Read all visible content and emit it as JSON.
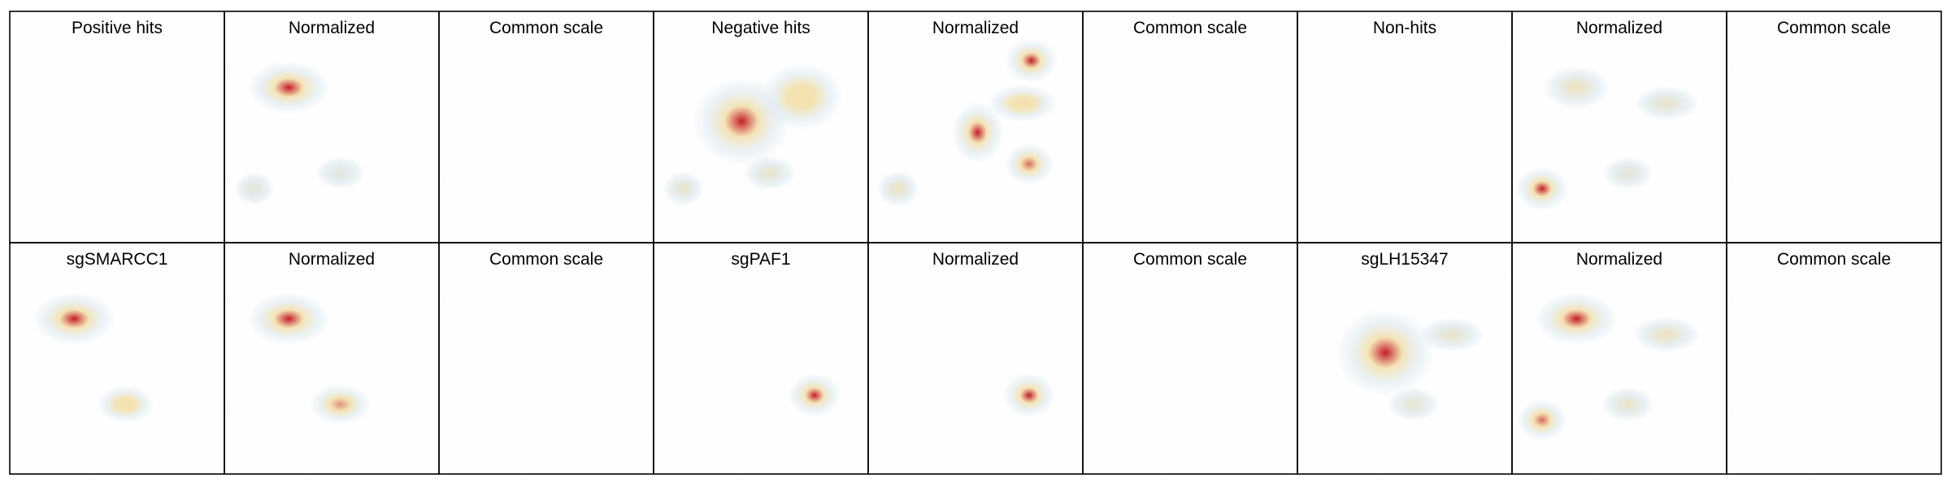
{
  "colors": {
    "background": "#ffffff",
    "embedding": "#dedede",
    "frame": "#000000",
    "density_low": "#dbe8ef",
    "density_mid": "#f3dfa8",
    "density_high": "#c00f1b"
  },
  "panels": [
    [
      {
        "title": "Positive hits",
        "hotspots": []
      },
      {
        "title": "Normalized",
        "hotspots": [
          {
            "region": "upper-left",
            "level": 1.0
          },
          {
            "region": "lower-left",
            "level": 0.2
          },
          {
            "region": "lower-middle",
            "level": 0.15
          }
        ]
      },
      {
        "title": "Common scale",
        "hotspots": []
      },
      {
        "title": "Negative hits",
        "hotspots": [
          {
            "region": "center-left",
            "level": 1.0
          },
          {
            "region": "center-right",
            "level": 0.5
          },
          {
            "region": "lower-left",
            "level": 0.3
          },
          {
            "region": "lower-middle",
            "level": 0.3
          }
        ]
      },
      {
        "title": "Normalized",
        "hotspots": [
          {
            "region": "top-right",
            "level": 1.0
          },
          {
            "region": "center",
            "level": 1.0
          },
          {
            "region": "lower-right",
            "level": 0.8
          },
          {
            "region": "right",
            "level": 0.5
          },
          {
            "region": "lower-left",
            "level": 0.4
          }
        ]
      },
      {
        "title": "Common scale",
        "hotspots": []
      },
      {
        "title": "Non-hits",
        "hotspots": []
      },
      {
        "title": "Normalized",
        "hotspots": [
          {
            "region": "lower-left",
            "level": 1.0
          },
          {
            "region": "upper-left",
            "level": 0.4
          },
          {
            "region": "right",
            "level": 0.3
          },
          {
            "region": "lower-middle",
            "level": 0.2
          }
        ]
      },
      {
        "title": "Common scale",
        "hotspots": []
      }
    ],
    [
      {
        "title": "sgSMARCC1",
        "hotspots": [
          {
            "region": "upper-left",
            "level": 1.0
          },
          {
            "region": "lower-middle",
            "level": 0.5
          }
        ]
      },
      {
        "title": "Normalized",
        "hotspots": [
          {
            "region": "upper-left",
            "level": 1.0
          },
          {
            "region": "lower-middle",
            "level": 0.7
          }
        ]
      },
      {
        "title": "Common scale",
        "hotspots": []
      },
      {
        "title": "sgPAF1",
        "hotspots": [
          {
            "region": "lower-right",
            "level": 1.0
          }
        ]
      },
      {
        "title": "Normalized",
        "hotspots": [
          {
            "region": "lower-right",
            "level": 1.0
          }
        ]
      },
      {
        "title": "Common scale",
        "hotspots": []
      },
      {
        "title": "sgLH15347",
        "hotspots": [
          {
            "region": "center-left",
            "level": 1.0
          },
          {
            "region": "right",
            "level": 0.3
          },
          {
            "region": "lower-middle",
            "level": 0.25
          }
        ]
      },
      {
        "title": "Normalized",
        "hotspots": [
          {
            "region": "upper-left",
            "level": 1.0
          },
          {
            "region": "lower-left",
            "level": 0.8
          },
          {
            "region": "right",
            "level": 0.4
          },
          {
            "region": "lower-middle",
            "level": 0.3
          }
        ]
      },
      {
        "title": "Common scale",
        "hotspots": []
      }
    ]
  ]
}
